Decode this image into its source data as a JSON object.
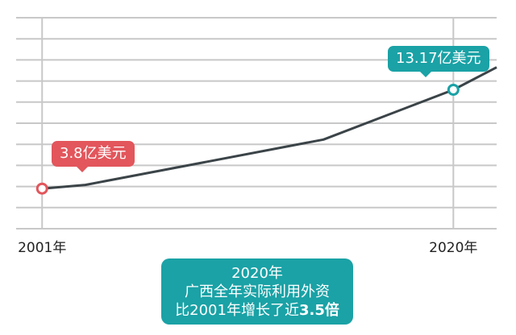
{
  "chart_data": {
    "type": "line",
    "x": [
      2001,
      2003,
      2014,
      2020,
      2022
    ],
    "y": [
      3.8,
      4.15,
      8.45,
      13.17,
      15.3
    ],
    "xlim": [
      1999.8,
      2022
    ],
    "ylim": [
      0,
      20
    ],
    "grid": true,
    "x_tick_labels": [
      "2001年",
      "2020年"
    ],
    "annotations": [
      {
        "x": 2001,
        "y": 3.8,
        "label": "3.8亿美元",
        "color": "#e2565c"
      },
      {
        "x": 2020,
        "y": 13.17,
        "label": "13.17亿美元",
        "color": "#1aa2a6"
      }
    ],
    "line_color": "#3b4448"
  },
  "summary": {
    "line1": "2020年",
    "line2": "广西全年实际利用外资",
    "line3_prefix": "比2001年增长了近",
    "line3_value": "3.5倍"
  }
}
